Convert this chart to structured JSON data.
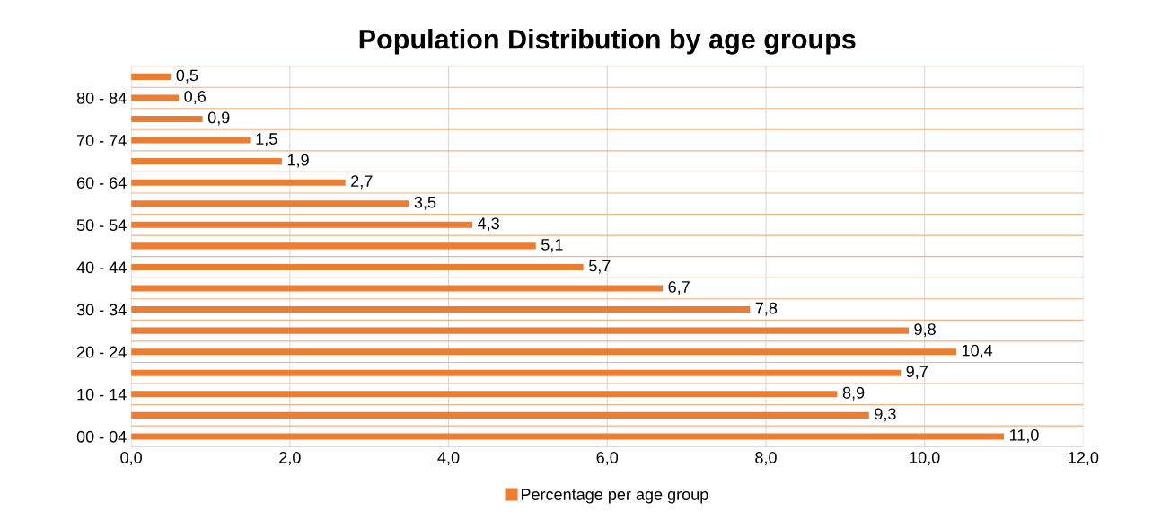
{
  "chart_data": {
    "type": "bar",
    "orientation": "horizontal",
    "title": "Population Distribution by age groups",
    "categories": [
      null,
      "80 - 84",
      null,
      "70 - 74",
      null,
      "60 - 64",
      null,
      "50 - 54",
      null,
      "40 - 44",
      null,
      "30 - 34",
      null,
      "20 - 24",
      null,
      "10 - 14",
      null,
      "00 - 04"
    ],
    "series": [
      {
        "name": "Percentage per age group",
        "color": "#ed7d31",
        "values": [
          0.5,
          0.6,
          0.9,
          1.5,
          1.9,
          2.7,
          3.5,
          4.3,
          5.1,
          5.7,
          6.7,
          7.8,
          9.8,
          10.4,
          9.7,
          8.9,
          9.3,
          11.0
        ],
        "value_labels": [
          "0,5",
          "0,6",
          "0,9",
          "1,5",
          "1,9",
          "2,7",
          "3,5",
          "4,3",
          "5,1",
          "5,7",
          "6,7",
          "7,8",
          "9,8",
          "10,4",
          "9,7",
          "8,9",
          "9,3",
          "11,0"
        ]
      }
    ],
    "xlim": [
      0,
      12
    ],
    "xticks": [
      {
        "value": 0,
        "label": "0,0"
      },
      {
        "value": 2,
        "label": "2,0"
      },
      {
        "value": 4,
        "label": "4,0"
      },
      {
        "value": 6,
        "label": "6,0"
      },
      {
        "value": 8,
        "label": "8,0"
      },
      {
        "value": 10,
        "label": "10,0"
      },
      {
        "value": 12,
        "label": "12,0"
      }
    ],
    "grid": true,
    "legend": "bottom"
  }
}
